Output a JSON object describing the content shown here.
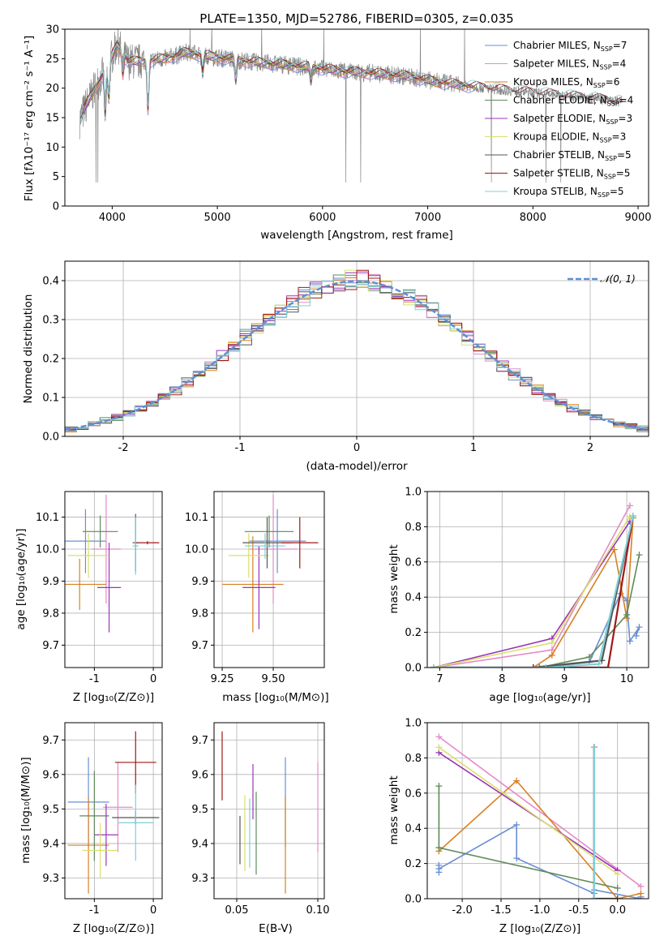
{
  "palette": [
    "#6a8fd4",
    "#e58ac8",
    "#d98020",
    "#5f8a5a",
    "#9a35b8",
    "#d9e06a",
    "#555555",
    "#a01818",
    "#7fd0d8"
  ],
  "chart_data": [
    {
      "id": "spectrum",
      "type": "line",
      "title": "PLATE=1350, MJD=52786, FIBERID=0305, z=0.035",
      "xlabel": "wavelength [Angstrom, rest frame]",
      "ylabel": "Flux [fλ10⁻¹⁷ erg cm⁻² s⁻¹ A⁻¹]",
      "xlim": [
        3550,
        9100
      ],
      "ylim": [
        0,
        30
      ],
      "xticks": [
        4000,
        5000,
        6000,
        7000,
        8000,
        9000
      ],
      "yticks": [
        0,
        5,
        10,
        15,
        20,
        25,
        30
      ],
      "data_series": {
        "name": "",
        "color": "#888888"
      },
      "data_knots": {
        "x": [
          3690,
          3750,
          3850,
          3950,
          4050,
          4150,
          4300,
          4500,
          4700,
          5000,
          5300,
          5600,
          5900,
          6200,
          6500,
          6800,
          7100,
          7400,
          7700,
          8000,
          8300,
          8600,
          8850
        ],
        "y": [
          14.5,
          17,
          20.5,
          23.5,
          27.5,
          24.5,
          24.5,
          25,
          26,
          25.2,
          24.5,
          24,
          23.5,
          22.8,
          22.5,
          22,
          21,
          20.3,
          19.7,
          19.2,
          18.7,
          18.2,
          17.6
        ]
      },
      "dips": [
        {
          "x": 3934,
          "depth": 6.5
        },
        {
          "x": 3968,
          "depth": 5.5
        },
        {
          "x": 4101,
          "depth": 3
        },
        {
          "x": 4340,
          "depth": 7
        },
        {
          "x": 4861,
          "depth": 2.5
        },
        {
          "x": 5175,
          "depth": 3
        },
        {
          "x": 5890,
          "depth": 2
        }
      ],
      "legend": [
        {
          "label": "Chabrier MILES",
          "nssp": "7"
        },
        {
          "label": "Salpeter MILES",
          "nssp": "4"
        },
        {
          "label": "Kroupa MILES",
          "nssp": "6"
        },
        {
          "label": "Chabrier ELODIE",
          "nssp": "4"
        },
        {
          "label": "Salpeter ELODIE",
          "nssp": "3"
        },
        {
          "label": "Kroupa ELODIE",
          "nssp": "3"
        },
        {
          "label": "Chabrier STELIB",
          "nssp": "5"
        },
        {
          "label": "Salpeter STELIB",
          "nssp": "5"
        },
        {
          "label": "Kroupa STELIB",
          "nssp": "5"
        }
      ],
      "legend_placement": "top-right"
    },
    {
      "id": "residuals",
      "type": "histogram",
      "xlabel": "(data-model)/error",
      "ylabel": "Normed distribution",
      "xlim": [
        -2.5,
        2.5
      ],
      "ylim": [
        0,
        0.45
      ],
      "xticks": [
        -2,
        -1,
        0,
        1,
        2
      ],
      "yticks": [
        0.0,
        0.1,
        0.2,
        0.3,
        0.4
      ],
      "bins": 50,
      "grid": true,
      "curve_label": "𝒩(0, 1)",
      "curve_color": "#5f8fd8",
      "legend_placement": "top-right"
    },
    {
      "id": "age_vs_Z",
      "type": "errorbar",
      "xlabel": "Z [log₁₀(Z/Z⊙)]",
      "ylabel": "age  [log₁₀(age/yr)]",
      "xlim": [
        -1.5,
        0.15
      ],
      "ylim": [
        9.63,
        10.18
      ],
      "xticks": [
        -1,
        0
      ],
      "yticks": [
        9.7,
        9.8,
        9.9,
        10.0,
        10.1
      ],
      "grid": true,
      "points": [
        {
          "x": -1.15,
          "xerr": 0.35,
          "y": 10.025,
          "yerr": 0.1
        },
        {
          "x": -0.8,
          "xerr": 0.25,
          "y": 10.0,
          "yerr": 0.17
        },
        {
          "x": -1.25,
          "xerr": 0.45,
          "y": 9.89,
          "yerr": 0.08
        },
        {
          "x": -0.9,
          "xerr": 0.3,
          "y": 10.055,
          "yerr": 0.05
        },
        {
          "x": -0.75,
          "xerr": 0.2,
          "y": 9.88,
          "yerr": 0.14
        },
        {
          "x": -1.1,
          "xerr": 0.35,
          "y": 9.98,
          "yerr": 0.07
        },
        {
          "x": -0.3,
          "xerr": 0.05,
          "y": 10.02,
          "yerr": 0.09
        },
        {
          "x": -0.1,
          "xerr": 0.2,
          "y": 10.02,
          "yerr": 0.005
        },
        {
          "x": -0.3,
          "xerr": 0.05,
          "y": 10.01,
          "yerr": 0.09
        }
      ]
    },
    {
      "id": "age_vs_mass",
      "type": "errorbar",
      "xlabel": "mass [log₁₀(M/M⊙)]",
      "ylabel": "",
      "xlim": [
        9.21,
        9.75
      ],
      "ylim": [
        9.63,
        10.18
      ],
      "xticks": [
        9.25,
        9.5
      ],
      "yticks": [
        9.7,
        9.8,
        9.9,
        10.0,
        10.1
      ],
      "grid": true,
      "points": [
        {
          "x": 9.52,
          "xerr": 0.14,
          "y": 10.025,
          "yerr": 0.1
        },
        {
          "x": 9.5,
          "xerr": 0.12,
          "y": 10.0,
          "yerr": 0.17
        },
        {
          "x": 9.4,
          "xerr": 0.15,
          "y": 9.89,
          "yerr": 0.15
        },
        {
          "x": 9.48,
          "xerr": 0.12,
          "y": 10.055,
          "yerr": 0.05
        },
        {
          "x": 9.43,
          "xerr": 0.08,
          "y": 9.88,
          "yerr": 0.13
        },
        {
          "x": 9.38,
          "xerr": 0.1,
          "y": 9.98,
          "yerr": 0.07
        },
        {
          "x": 9.47,
          "xerr": 0.12,
          "y": 10.02,
          "yerr": 0.08
        },
        {
          "x": 9.63,
          "xerr": 0.09,
          "y": 10.02,
          "yerr": 0.08
        },
        {
          "x": 9.46,
          "xerr": 0.1,
          "y": 10.01,
          "yerr": 0.04
        }
      ]
    },
    {
      "id": "mass_weight_vs_age",
      "type": "line",
      "xlabel": "age  [log₁₀(age/yr)]",
      "ylabel": "mass weight",
      "xlim": [
        6.8,
        10.35
      ],
      "ylim": [
        0,
        1
      ],
      "xticks": [
        7,
        8,
        9,
        10
      ],
      "yticks": [
        0.0,
        0.2,
        0.4,
        0.6,
        0.8,
        1.0
      ],
      "grid": true,
      "series": [
        {
          "x": [
            6.9,
            8.6,
            9.4,
            9.9,
            10.0,
            10.05,
            10.2,
            10.15
          ],
          "y": [
            0,
            0.0,
            0.03,
            0.42,
            0.38,
            0.15,
            0.23,
            0.18
          ]
        },
        {
          "x": [
            6.9,
            8.8,
            10.05
          ],
          "y": [
            0,
            0.1,
            0.92
          ]
        },
        {
          "x": [
            6.9,
            8.5,
            8.8,
            9.8,
            10.0,
            10.1
          ],
          "y": [
            0,
            0.0,
            0.07,
            0.67,
            0.28,
            0.85
          ]
        },
        {
          "x": [
            6.9,
            8.6,
            9.4,
            10.0,
            10.2
          ],
          "y": [
            0,
            0.0,
            0.06,
            0.3,
            0.64
          ]
        },
        {
          "x": [
            6.9,
            8.8,
            10.05
          ],
          "y": [
            0,
            0.165,
            0.83
          ]
        },
        {
          "x": [
            6.9,
            8.8,
            10.05
          ],
          "y": [
            0,
            0.14,
            0.86
          ]
        },
        {
          "x": [
            6.9,
            8.5,
            9.6,
            10.1
          ],
          "y": [
            0,
            0.0,
            0.04,
            0.86
          ]
        },
        {
          "x": [
            6.9,
            8.5,
            9.7,
            10.1
          ],
          "y": [
            0,
            0.0,
            0.0,
            0.86
          ]
        },
        {
          "x": [
            6.9,
            8.7,
            9.55,
            10.1
          ],
          "y": [
            0,
            0.0,
            0.02,
            0.86
          ]
        }
      ]
    },
    {
      "id": "mass_vs_Z",
      "type": "errorbar",
      "xlabel": "Z [log₁₀(Z/Z⊙)]",
      "ylabel": "mass [log₁₀(M/M⊙)]",
      "xlim": [
        -1.5,
        0.15
      ],
      "ylim": [
        9.24,
        9.75
      ],
      "xticks": [
        -1,
        0
      ],
      "yticks": [
        9.3,
        9.4,
        9.5,
        9.6,
        9.7
      ],
      "grid": true,
      "points": [
        {
          "x": -1.1,
          "xerr": 0.35,
          "y": 9.52,
          "yerr": 0.13
        },
        {
          "x": -0.6,
          "xerr": 0.25,
          "y": 9.505,
          "yerr": 0.13
        },
        {
          "x": -1.1,
          "xerr": 0.35,
          "y": 9.395,
          "yerr": 0.14
        },
        {
          "x": -1.0,
          "xerr": 0.25,
          "y": 9.48,
          "yerr": 0.13
        },
        {
          "x": -0.8,
          "xerr": 0.2,
          "y": 9.425,
          "yerr": 0.09
        },
        {
          "x": -0.9,
          "xerr": 0.3,
          "y": 9.38,
          "yerr": 0.08
        },
        {
          "x": -0.3,
          "xerr": 0.4,
          "y": 9.475,
          "yerr": 0.02
        },
        {
          "x": -0.3,
          "xerr": 0.35,
          "y": 9.635,
          "yerr": 0.09
        },
        {
          "x": -0.3,
          "xerr": 0.3,
          "y": 9.46,
          "yerr": 0.11
        }
      ]
    },
    {
      "id": "mass_vs_ebv",
      "type": "errorbar",
      "xlabel": "E(B-V)",
      "ylabel": "",
      "xlim": [
        0.036,
        0.104
      ],
      "ylim": [
        9.24,
        9.75
      ],
      "xticks": [
        0.05,
        0.1
      ],
      "yticks": [
        9.3,
        9.4,
        9.5,
        9.6,
        9.7
      ],
      "grid": true,
      "points": [
        {
          "x": 0.08,
          "xerr": 0.0,
          "y": 9.52,
          "yerr": 0.13
        },
        {
          "x": 0.1,
          "xerr": 0.0,
          "y": 9.505,
          "yerr": 0.13
        },
        {
          "x": 0.08,
          "xerr": 0.0,
          "y": 9.395,
          "yerr": 0.14
        },
        {
          "x": 0.062,
          "xerr": 0.0,
          "y": 9.43,
          "yerr": 0.12
        },
        {
          "x": 0.06,
          "xerr": 0.0,
          "y": 9.55,
          "yerr": 0.08
        },
        {
          "x": 0.055,
          "xerr": 0.0,
          "y": 9.43,
          "yerr": 0.11
        },
        {
          "x": 0.052,
          "xerr": 0.0,
          "y": 9.41,
          "yerr": 0.07
        },
        {
          "x": 0.041,
          "xerr": 0.0,
          "y": 9.625,
          "yerr": 0.1
        },
        {
          "x": 0.058,
          "xerr": 0.0,
          "y": 9.43,
          "yerr": 0.1
        }
      ]
    },
    {
      "id": "mass_weight_vs_Z",
      "type": "line",
      "xlabel": "Z [log₁₀(Z/Z⊙)]",
      "ylabel": "mass weight",
      "xlim": [
        -2.45,
        0.4
      ],
      "ylim": [
        0,
        1
      ],
      "xticks": [
        -2.0,
        -1.5,
        -1.0,
        -0.5,
        0.0
      ],
      "yticks": [
        0.0,
        0.2,
        0.4,
        0.6,
        0.8,
        1.0
      ],
      "grid": true,
      "series": [
        {
          "x": [
            -2.3,
            -2.3,
            -2.3,
            -1.3,
            -1.3,
            -0.3,
            -0.3,
            0.3,
            0.3
          ],
          "y": [
            0.15,
            0.19,
            0.17,
            0.42,
            0.23,
            0.03,
            0.05,
            0.0,
            0.01
          ]
        },
        {
          "x": [
            -2.3,
            0.3
          ],
          "y": [
            0.92,
            0.07
          ]
        },
        {
          "x": [
            -2.3,
            -1.3,
            0.0,
            0.3
          ],
          "y": [
            0.27,
            0.67,
            0.0,
            0.03
          ]
        },
        {
          "x": [
            -2.3,
            -2.3,
            0.0
          ],
          "y": [
            0.64,
            0.29,
            0.06
          ]
        },
        {
          "x": [
            -2.3,
            0.0
          ],
          "y": [
            0.83,
            0.16
          ]
        },
        {
          "x": [
            -2.3,
            0.0
          ],
          "y": [
            0.86,
            0.14
          ]
        },
        {
          "x": [
            -0.3,
            -0.3,
            0.0
          ],
          "y": [
            0.86,
            0.0,
            0.0
          ]
        },
        {
          "x": [
            -0.3,
            -0.3
          ],
          "y": [
            0.86,
            0.0
          ]
        },
        {
          "x": [
            -0.3,
            -0.3
          ],
          "y": [
            0.86,
            0.0
          ]
        }
      ]
    }
  ]
}
